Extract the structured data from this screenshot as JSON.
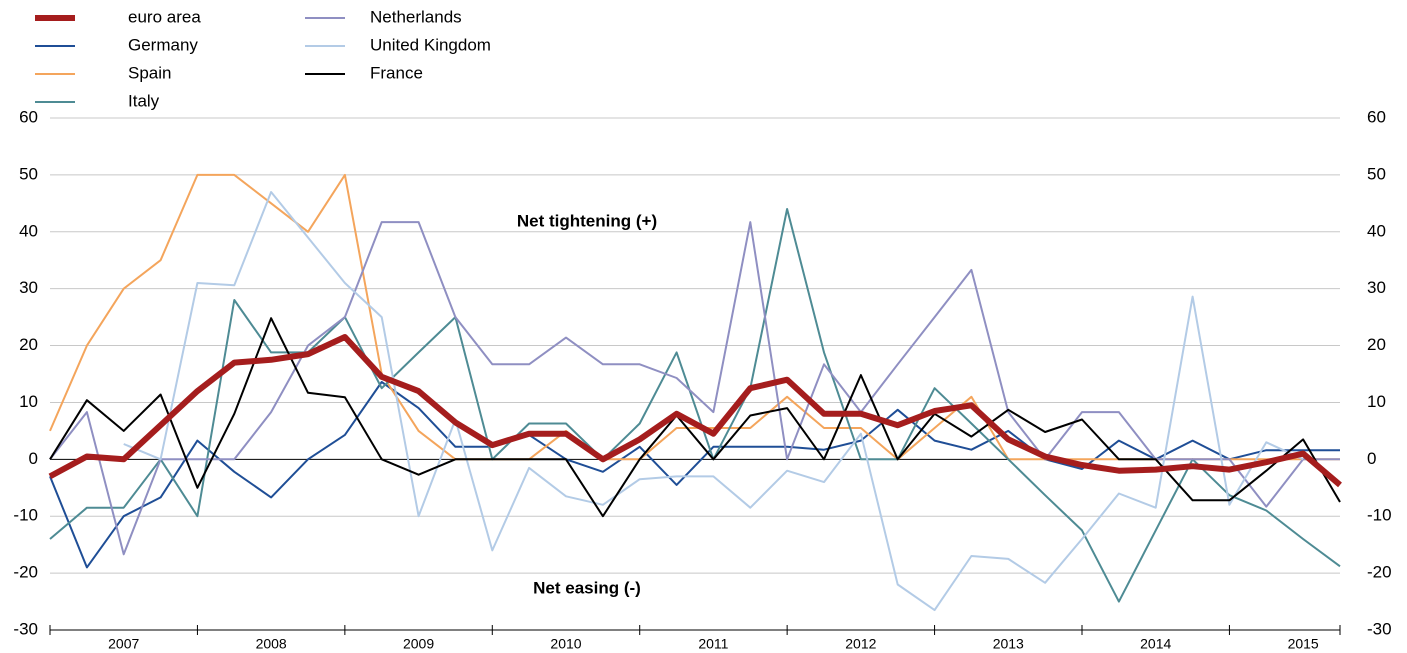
{
  "chart_data": {
    "type": "line",
    "annotations": [
      "Net tightening (+)",
      "Net easing (-)"
    ],
    "x_labels": [
      "2007",
      "2008",
      "2009",
      "2010",
      "2011",
      "2012",
      "2013",
      "2014",
      "2015"
    ],
    "ylim": [
      -30,
      60
    ],
    "yticks": [
      -30,
      -20,
      -10,
      0,
      10,
      20,
      30,
      40,
      50,
      60
    ],
    "grid": true,
    "series": [
      {
        "name": "euro area",
        "color": "#a51d1d",
        "values": [
          -3,
          0.5,
          0,
          6,
          12,
          17,
          17.5,
          18.5,
          21.5,
          14.5,
          12,
          6.5,
          2.5,
          4.5,
          4.5,
          0,
          3.5,
          8,
          4.5,
          12.5,
          14,
          8,
          8,
          6,
          8.5,
          9.5,
          3.5,
          0.5,
          -1,
          -2,
          -1.8,
          -1.2,
          -1.8,
          -0.5,
          1,
          -4.5
        ]
      },
      {
        "name": "Germany",
        "color": "#1f4e96",
        "values": [
          -3,
          -19,
          -10,
          -6.7,
          3.3,
          -2.2,
          -6.7,
          0,
          4.3,
          13.6,
          9,
          2.2,
          2.2,
          4.3,
          0,
          -2.2,
          2.2,
          -4.5,
          2.2,
          2.2,
          2.2,
          1.7,
          3.3,
          8.7,
          3.3,
          1.7,
          5,
          0,
          -1.7,
          3.3,
          0,
          3.3,
          0,
          1.6,
          1.6,
          1.6
        ]
      },
      {
        "name": "Spain",
        "color": "#f4a55c",
        "values": [
          5,
          20,
          30,
          35,
          50,
          50,
          45,
          40,
          50,
          15,
          5,
          0,
          0,
          0,
          5,
          0,
          0,
          5.5,
          5.5,
          5.5,
          11,
          5.5,
          5.5,
          0,
          5.5,
          11,
          0,
          0,
          0,
          0,
          0,
          0,
          0,
          0,
          0,
          0
        ]
      },
      {
        "name": "Italy",
        "color": "#4e8b94",
        "values": [
          -14,
          -8.5,
          -8.5,
          0,
          -10,
          28,
          18.8,
          18.8,
          25,
          12.5,
          18.8,
          25,
          0,
          6.3,
          6.3,
          0,
          6.3,
          18.8,
          0,
          12.5,
          44,
          18.8,
          0,
          0,
          12.5,
          6.3,
          0,
          -6.3,
          -12.5,
          -25,
          -12.5,
          0,
          -6.3,
          -9,
          -14,
          -18.8
        ]
      },
      {
        "name": "Netherlands",
        "color": "#8f8fc2",
        "values": [
          0,
          8.3,
          -16.7,
          0,
          0,
          0,
          8.3,
          20,
          25,
          41.7,
          41.7,
          25,
          16.7,
          16.7,
          21.4,
          16.7,
          16.7,
          14.3,
          8.3,
          41.7,
          0,
          16.7,
          8.3,
          16.7,
          25,
          33.3,
          8.3,
          0,
          8.3,
          8.3,
          0,
          0,
          0,
          -8.3,
          0,
          0
        ]
      },
      {
        "name": "United Kingdom",
        "color": "#b3cbe6",
        "values": [
          null,
          null,
          2.7,
          0,
          31,
          30.6,
          47,
          39,
          31,
          25,
          -10,
          7,
          -16,
          -1.5,
          -6.5,
          -8,
          -3.5,
          -3,
          -3,
          -8.5,
          -2,
          -4,
          4.5,
          -22,
          -26.5,
          -17,
          -17.5,
          -21.7,
          -14,
          -6,
          -8.5,
          28.6,
          -8,
          3,
          0,
          null
        ]
      },
      {
        "name": "France",
        "color": "#000000",
        "values": [
          0,
          10.4,
          5,
          11.4,
          -5,
          8,
          24.8,
          11.7,
          10.9,
          0,
          -2.7,
          0,
          0,
          0,
          0,
          -10,
          0,
          7.7,
          0,
          7.7,
          9,
          0,
          14.8,
          0,
          8,
          4,
          8.7,
          4.8,
          7,
          0,
          0,
          -7.2,
          -7.2,
          -2,
          3.5,
          -7.5
        ]
      }
    ]
  }
}
